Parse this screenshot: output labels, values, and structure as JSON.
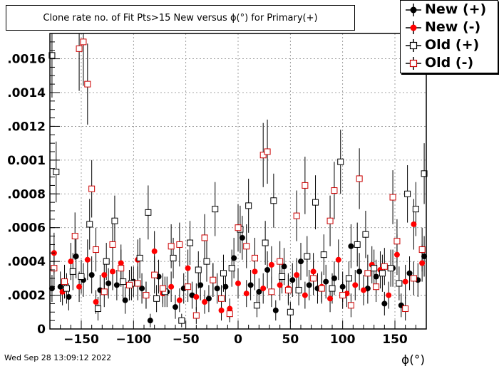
{
  "timestamp": "Wed Sep 28 13:09:12 2022",
  "chart_data": {
    "type": "scatter",
    "title": "Clone rate no. of Fit Pts>15 New versus ϕ(°) for Primary(+)",
    "xlabel": "ϕ(°)",
    "ylabel": "",
    "xlim": [
      -180,
      180
    ],
    "ylim": [
      0,
      0.00175
    ],
    "grid": true,
    "legend_position": "top-right",
    "x_ticks": [
      -150,
      -100,
      -50,
      0,
      50,
      100,
      150
    ],
    "y_ticks": [
      0,
      0.0002,
      0.0004,
      0.0006,
      0.0008,
      0.001,
      0.0012,
      0.0014,
      0.0016
    ],
    "y_tick_labels": [
      "0",
      ".0002",
      ".0004",
      ".0006",
      ".0008",
      "0.001",
      ".0012",
      ".0014",
      ".0016"
    ],
    "x_tick_labels": [
      "−150",
      "−100",
      "−50",
      "0",
      "50",
      "100",
      "150"
    ],
    "series": [
      {
        "name": "New (+)",
        "marker": "filled-circle",
        "color": "#000000",
        "x": [
          -178,
          -170,
          -162,
          -155,
          -148,
          -140,
          -132,
          -124,
          -116,
          -108,
          -100,
          -92,
          -84,
          -76,
          -68,
          -60,
          -52,
          -44,
          -36,
          -28,
          -20,
          -12,
          -4,
          4,
          12,
          20,
          28,
          36,
          44,
          52,
          60,
          68,
          76,
          84,
          92,
          100,
          108,
          116,
          124,
          132,
          140,
          148,
          156,
          164,
          172,
          178
        ],
        "y": [
          0.00024,
          0.00025,
          0.00019,
          0.00043,
          0.00029,
          0.00032,
          0.00023,
          0.00027,
          0.00026,
          0.00017,
          0.00028,
          0.00024,
          5e-05,
          0.00031,
          0.00022,
          0.00013,
          0.00024,
          0.0002,
          0.00026,
          0.00018,
          0.00024,
          0.00025,
          0.00042,
          0.00054,
          0.00026,
          0.00022,
          0.00035,
          0.00011,
          0.00037,
          0.00029,
          0.0004,
          0.00026,
          0.00024,
          0.00028,
          0.0003,
          0.00025,
          0.00049,
          0.00034,
          0.00024,
          0.00031,
          0.00015,
          0.00036,
          0.00014,
          0.00033,
          0.00029,
          0.00043
        ],
        "err": [
          8e-05,
          9e-05,
          8e-05,
          0.00013,
          0.0001,
          0.00011,
          9e-05,
          9e-05,
          9e-05,
          8e-05,
          9e-05,
          9e-05,
          4e-05,
          0.0001,
          9e-05,
          7e-05,
          9e-05,
          8e-05,
          9e-05,
          8e-05,
          9e-05,
          9e-05,
          0.00012,
          0.00013,
          9e-05,
          8e-05,
          0.00011,
          6e-05,
          0.00011,
          0.0001,
          0.00011,
          9e-05,
          9e-05,
          0.0001,
          0.0001,
          9e-05,
          0.00013,
          0.00011,
          9e-05,
          0.0001,
          7e-05,
          0.00011,
          7e-05,
          0.0001,
          0.0001,
          0.00012
        ]
      },
      {
        "name": "New (-)",
        "marker": "filled-circle",
        "color": "#ff0000",
        "x": [
          -176,
          -168,
          -160,
          -152,
          -144,
          -136,
          -128,
          -120,
          -112,
          -104,
          -96,
          -88,
          -80,
          -72,
          -64,
          -56,
          -48,
          -40,
          -32,
          -24,
          -16,
          -8,
          0,
          8,
          16,
          24,
          32,
          40,
          48,
          56,
          64,
          72,
          80,
          88,
          96,
          104,
          112,
          120,
          128,
          136,
          144,
          152,
          160,
          168,
          176
        ],
        "y": [
          0.00045,
          0.00022,
          0.0004,
          0.00025,
          0.00041,
          0.00016,
          0.00032,
          0.00034,
          0.00039,
          0.00026,
          0.00041,
          0.0002,
          0.00046,
          0.00021,
          0.00025,
          0.00017,
          0.00036,
          0.00019,
          0.00016,
          0.00029,
          0.00011,
          0.00012,
          0.00027,
          0.00021,
          0.00034,
          0.00024,
          0.00038,
          0.00026,
          0.00024,
          0.00032,
          0.0002,
          0.00034,
          0.00025,
          0.00018,
          0.00041,
          0.00021,
          0.00026,
          0.00023,
          0.00038,
          0.00035,
          0.0002,
          0.00044,
          0.00028,
          0.00062,
          0.00039
        ],
        "err": [
          0.00012,
          8e-05,
          0.00011,
          9e-05,
          0.00012,
          7e-05,
          0.0001,
          0.00011,
          0.00011,
          9e-05,
          0.00012,
          8e-05,
          0.00012,
          8e-05,
          9e-05,
          7e-05,
          0.00011,
          8e-05,
          7e-05,
          0.0001,
          6e-05,
          6e-05,
          9e-05,
          8e-05,
          0.00011,
          9e-05,
          0.00011,
          9e-05,
          9e-05,
          0.0001,
          8e-05,
          0.00011,
          9e-05,
          8e-05,
          0.00012,
          8e-05,
          9e-05,
          9e-05,
          0.00011,
          0.00011,
          8e-05,
          0.00012,
          0.0001,
          0.00015,
          0.00011
        ]
      },
      {
        "name": "Old (+)",
        "marker": "open-square",
        "color": "#000000",
        "x": [
          -178,
          -174,
          -164,
          -158,
          -150,
          -142,
          -134,
          -126,
          -118,
          -110,
          -102,
          -94,
          -86,
          -78,
          -70,
          -62,
          -54,
          -46,
          -38,
          -30,
          -22,
          -14,
          -6,
          2,
          10,
          18,
          26,
          34,
          42,
          50,
          58,
          66,
          74,
          82,
          90,
          98,
          106,
          114,
          122,
          130,
          138,
          146,
          154,
          162,
          170,
          178
        ],
        "y": [
          0.00162,
          0.00093,
          0.00024,
          0.00034,
          0.00031,
          0.00062,
          0.00012,
          0.0004,
          0.00064,
          0.00028,
          0.00027,
          0.00042,
          0.00069,
          0.00018,
          0.00022,
          0.00042,
          5e-05,
          0.00051,
          0.00035,
          0.0004,
          0.00071,
          0.00033,
          0.00036,
          0.00059,
          0.00073,
          0.00014,
          0.00051,
          0.00076,
          0.00031,
          0.0001,
          0.00023,
          0.00043,
          0.00075,
          0.00044,
          0.00024,
          0.00099,
          0.0003,
          0.0005,
          0.00056,
          0.00036,
          0.00033,
          0.00036,
          0.00027,
          0.0008,
          0.00071,
          0.00092
        ],
        "err": [
          0.00025,
          0.00018,
          9e-05,
          0.00011,
          0.0001,
          0.00015,
          7e-05,
          0.00011,
          0.00015,
          0.0001,
          0.0001,
          0.00012,
          0.00016,
          8e-05,
          9e-05,
          0.00012,
          4e-05,
          0.00013,
          0.00011,
          0.00012,
          0.00016,
          0.00011,
          0.00011,
          0.00014,
          0.00016,
          7e-05,
          0.00013,
          0.00016,
          0.0001,
          6e-05,
          9e-05,
          0.00012,
          0.00016,
          0.00012,
          9e-05,
          0.00019,
          0.0001,
          0.00013,
          0.00014,
          0.00011,
          0.00011,
          0.00011,
          0.0001,
          0.00017,
          0.00016,
          0.00018
        ]
      },
      {
        "name": "Old (-)",
        "marker": "open-square",
        "color": "#cc0000",
        "x": [
          -176,
          -166,
          -156,
          -152,
          -148,
          -144,
          -140,
          -136,
          -128,
          -120,
          -112,
          -104,
          -96,
          -88,
          -80,
          -72,
          -64,
          -56,
          -48,
          -40,
          -32,
          -24,
          -16,
          -8,
          0,
          8,
          16,
          24,
          28,
          32,
          40,
          48,
          56,
          64,
          72,
          80,
          88,
          92,
          100,
          108,
          116,
          124,
          132,
          140,
          148,
          152,
          160,
          168,
          176
        ],
        "y": [
          0.00036,
          0.00028,
          0.00055,
          0.00166,
          0.0017,
          0.00145,
          0.00083,
          0.00047,
          0.00022,
          0.0005,
          0.00036,
          0.00026,
          0.00027,
          0.0002,
          0.00032,
          0.00024,
          0.00049,
          0.0005,
          0.00025,
          8e-05,
          0.00054,
          0.00029,
          0.00018,
          9e-05,
          0.0006,
          0.00049,
          0.00042,
          0.00103,
          0.00105,
          0.00022,
          0.0004,
          0.00023,
          0.00067,
          0.00085,
          0.0003,
          0.00024,
          0.00064,
          0.00082,
          0.0002,
          0.00014,
          0.00089,
          0.00033,
          0.00025,
          0.00037,
          0.00078,
          0.00052,
          0.00012,
          0.0003,
          0.00047
        ],
        "err": [
          0.00011,
          0.0001,
          0.00014,
          0.00025,
          0.00026,
          0.00024,
          0.00017,
          0.00013,
          9e-05,
          0.00013,
          0.00011,
          9e-05,
          0.0001,
          8e-05,
          0.00011,
          9e-05,
          0.00013,
          0.00013,
          9e-05,
          5e-05,
          0.00014,
          0.0001,
          8e-05,
          5e-05,
          0.00014,
          0.00013,
          0.00012,
          0.00019,
          0.00019,
          9e-05,
          0.00012,
          9e-05,
          0.00015,
          0.00017,
          0.0001,
          9e-05,
          0.00015,
          0.00017,
          8e-05,
          7e-05,
          0.00018,
          0.00011,
          9e-05,
          0.00011,
          0.00016,
          0.00013,
          7e-05,
          0.0001,
          0.00013
        ]
      }
    ]
  }
}
